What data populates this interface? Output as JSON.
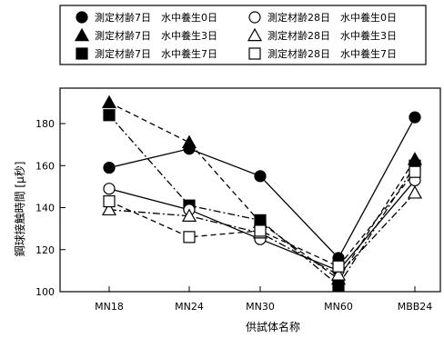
{
  "chart_data": {
    "type": "line",
    "xlabel": "供試体名称",
    "ylabel": "鋼球接触時間 [μ秒]",
    "categories": [
      "MN18",
      "MN24",
      "MN30",
      "MN60",
      "MBB24"
    ],
    "ylim": [
      100,
      190
    ],
    "yticks": [
      100,
      120,
      140,
      160,
      180
    ],
    "grid": false,
    "legend_position": "top (boxed, above plot)",
    "series": [
      {
        "name": "測定材齢7日　水中養生0日",
        "values": [
          159,
          168,
          155,
          116,
          183
        ],
        "marker": "circle",
        "filled": true,
        "dash": "solid"
      },
      {
        "name": "測定材齢7日　水中養生3日",
        "values": [
          190,
          171,
          133,
          106,
          163
        ],
        "marker": "triangle",
        "filled": true,
        "dash": "dash"
      },
      {
        "name": "測定材齢7日　水中養生7日",
        "values": [
          184,
          141,
          134,
          103,
          160
        ],
        "marker": "square",
        "filled": true,
        "dash": "dashdot"
      },
      {
        "name": "測定材齢28日　水中養生0日",
        "values": [
          149,
          139,
          125,
          110,
          153
        ],
        "marker": "circle",
        "filled": false,
        "dash": "solid"
      },
      {
        "name": "測定材齢28日　水中養生3日",
        "values": [
          139,
          136,
          128,
          108,
          147
        ],
        "marker": "triangle",
        "filled": false,
        "dash": "dashdot"
      },
      {
        "name": "測定材齢28日　水中養生7日",
        "values": [
          143,
          126,
          129,
          112,
          157
        ],
        "marker": "square",
        "filled": false,
        "dash": "dash"
      }
    ]
  }
}
